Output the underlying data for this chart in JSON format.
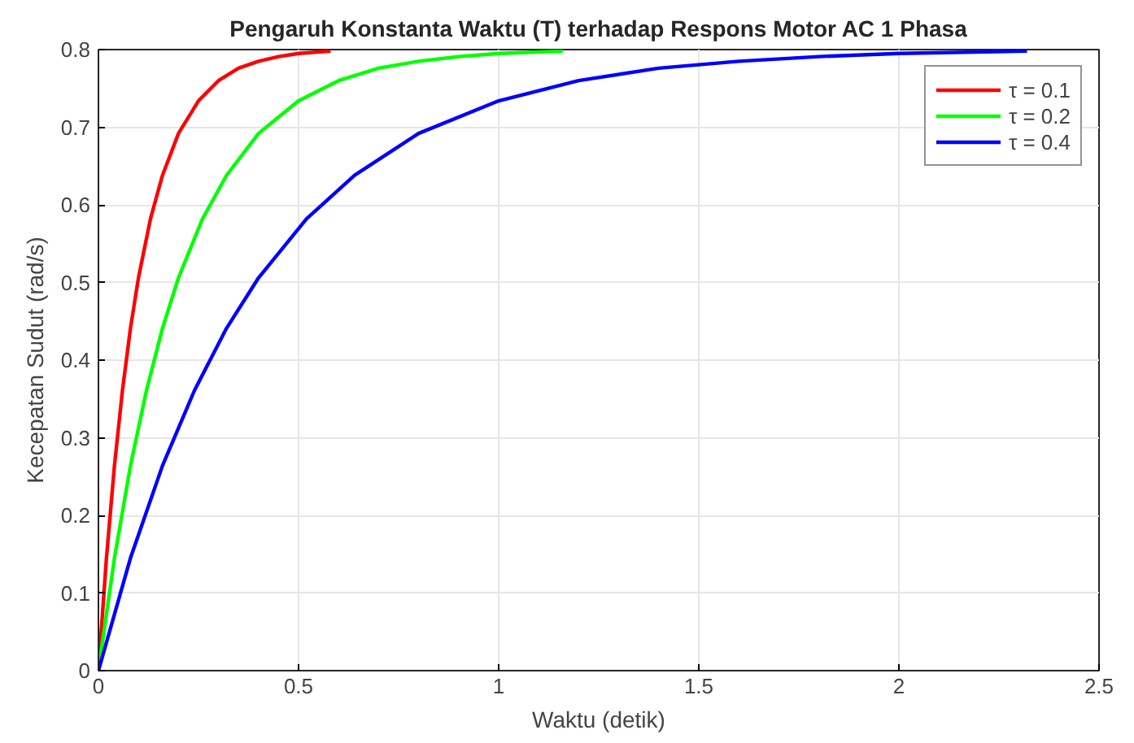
{
  "chart_data": {
    "type": "line",
    "title": "Pengaruh Konstanta Waktu (T) terhadap Respons Motor AC 1 Phasa",
    "xlabel": "Waktu (detik)",
    "ylabel": "Kecepatan Sudut (rad/s)",
    "xlim": [
      0,
      2.5
    ],
    "ylim": [
      0,
      0.8
    ],
    "xticks": [
      0,
      0.5,
      1,
      1.5,
      2,
      2.5
    ],
    "yticks": [
      0,
      0.1,
      0.2,
      0.3,
      0.4,
      0.5,
      0.6,
      0.7,
      0.8
    ],
    "grid": true,
    "legend": "top right",
    "marker": "none",
    "line_style": "solid",
    "series": [
      {
        "name": "τ = 0.1",
        "color": "#ff0000",
        "x": [
          0,
          0.02,
          0.04,
          0.06,
          0.08,
          0.1,
          0.13,
          0.16,
          0.2,
          0.25,
          0.3,
          0.35,
          0.4,
          0.45,
          0.5,
          0.58
        ],
        "values": [
          0,
          0.145,
          0.264,
          0.361,
          0.441,
          0.506,
          0.582,
          0.638,
          0.692,
          0.734,
          0.76,
          0.776,
          0.785,
          0.791,
          0.795,
          0.798
        ]
      },
      {
        "name": "τ = 0.2",
        "color": "#00ff00",
        "x": [
          0,
          0.04,
          0.08,
          0.12,
          0.16,
          0.2,
          0.26,
          0.32,
          0.4,
          0.5,
          0.6,
          0.7,
          0.8,
          0.9,
          1.0,
          1.16
        ],
        "values": [
          0,
          0.145,
          0.264,
          0.361,
          0.441,
          0.506,
          0.582,
          0.638,
          0.692,
          0.734,
          0.76,
          0.776,
          0.785,
          0.791,
          0.795,
          0.798
        ]
      },
      {
        "name": "τ = 0.4",
        "color": "#0000ff",
        "x": [
          0,
          0.08,
          0.16,
          0.24,
          0.32,
          0.4,
          0.52,
          0.64,
          0.8,
          1.0,
          1.2,
          1.4,
          1.6,
          1.8,
          2.0,
          2.32
        ],
        "values": [
          0,
          0.145,
          0.264,
          0.361,
          0.441,
          0.506,
          0.582,
          0.638,
          0.692,
          0.734,
          0.76,
          0.776,
          0.785,
          0.791,
          0.795,
          0.798
        ]
      }
    ]
  }
}
